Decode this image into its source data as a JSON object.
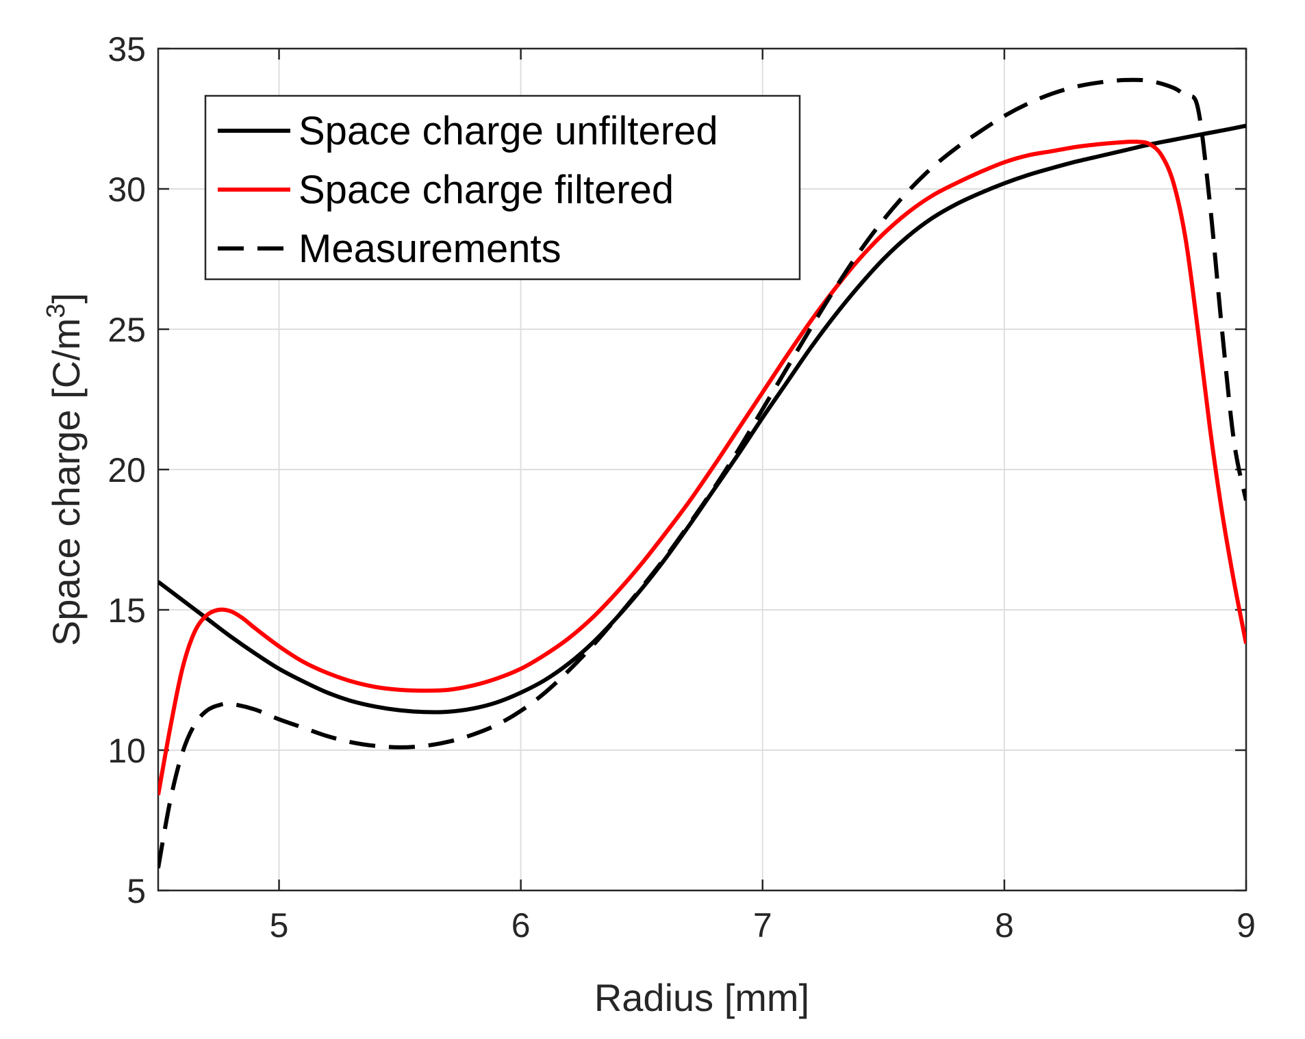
{
  "chart_data": {
    "type": "line",
    "title": "",
    "xlabel": "Radius [mm]",
    "ylabel": "Space charge [C/m",
    "ylabel_superscript": "3",
    "ylabel_suffix": "]",
    "xlim": [
      4.5,
      9
    ],
    "ylim": [
      5,
      35
    ],
    "xticks": [
      5,
      6,
      7,
      8,
      9
    ],
    "yticks": [
      5,
      10,
      15,
      20,
      25,
      30,
      35
    ],
    "xtick_labels": [
      "5",
      "6",
      "7",
      "8",
      "9"
    ],
    "ytick_labels": [
      "5",
      "10",
      "15",
      "20",
      "25",
      "30",
      "35"
    ],
    "grid": true,
    "legend_position": "top-left",
    "series": [
      {
        "name": "Space charge unfiltered",
        "color": "#000000",
        "style": "solid",
        "x": [
          4.5,
          4.6,
          4.7,
          4.8,
          4.9,
          5.0,
          5.1,
          5.2,
          5.3,
          5.4,
          5.5,
          5.6,
          5.7,
          5.8,
          5.9,
          6.0,
          6.1,
          6.2,
          6.3,
          6.4,
          6.5,
          6.6,
          6.7,
          6.8,
          6.9,
          7.0,
          7.1,
          7.2,
          7.3,
          7.4,
          7.5,
          7.6,
          7.7,
          7.8,
          7.9,
          8.0,
          8.1,
          8.2,
          8.3,
          8.4,
          8.5,
          8.6,
          8.7,
          8.8,
          8.9,
          9.0
        ],
        "values": [
          16.0,
          15.35,
          14.7,
          14.05,
          13.45,
          12.9,
          12.45,
          12.05,
          11.75,
          11.55,
          11.42,
          11.36,
          11.37,
          11.48,
          11.7,
          12.05,
          12.5,
          13.1,
          13.85,
          14.75,
          15.75,
          16.85,
          18.05,
          19.3,
          20.55,
          21.85,
          23.1,
          24.35,
          25.5,
          26.55,
          27.5,
          28.3,
          28.95,
          29.45,
          29.85,
          30.2,
          30.5,
          30.75,
          30.98,
          31.18,
          31.38,
          31.58,
          31.75,
          31.92,
          32.08,
          32.25
        ]
      },
      {
        "name": "Space charge filtered",
        "color": "#ff0000",
        "style": "solid",
        "x": [
          4.5,
          4.55,
          4.6,
          4.65,
          4.7,
          4.75,
          4.8,
          4.85,
          4.9,
          5.0,
          5.1,
          5.2,
          5.3,
          5.4,
          5.5,
          5.6,
          5.7,
          5.8,
          5.9,
          6.0,
          6.1,
          6.2,
          6.3,
          6.4,
          6.5,
          6.6,
          6.7,
          6.8,
          6.9,
          7.0,
          7.1,
          7.2,
          7.3,
          7.4,
          7.5,
          7.6,
          7.7,
          7.8,
          7.9,
          8.0,
          8.1,
          8.2,
          8.3,
          8.4,
          8.5,
          8.55,
          8.6,
          8.65,
          8.7,
          8.75,
          8.8,
          8.85,
          8.9,
          8.95,
          9.0
        ],
        "values": [
          8.4,
          10.8,
          12.9,
          14.2,
          14.8,
          15.0,
          14.95,
          14.7,
          14.35,
          13.7,
          13.15,
          12.75,
          12.45,
          12.25,
          12.15,
          12.12,
          12.15,
          12.3,
          12.55,
          12.9,
          13.4,
          14.0,
          14.75,
          15.65,
          16.65,
          17.75,
          18.9,
          20.15,
          21.45,
          22.75,
          24.05,
          25.3,
          26.45,
          27.5,
          28.4,
          29.15,
          29.75,
          30.2,
          30.6,
          30.95,
          31.2,
          31.35,
          31.5,
          31.6,
          31.67,
          31.68,
          31.6,
          31.2,
          30.2,
          28.2,
          25.0,
          21.5,
          18.5,
          16.0,
          13.8
        ]
      },
      {
        "name": "Measurements",
        "color": "#000000",
        "style": "dashed",
        "x": [
          4.5,
          4.55,
          4.6,
          4.65,
          4.7,
          4.75,
          4.8,
          4.9,
          5.0,
          5.1,
          5.2,
          5.3,
          5.4,
          5.5,
          5.6,
          5.7,
          5.8,
          5.9,
          6.0,
          6.1,
          6.2,
          6.3,
          6.4,
          6.5,
          6.6,
          6.7,
          6.8,
          6.9,
          7.0,
          7.1,
          7.2,
          7.3,
          7.4,
          7.5,
          7.6,
          7.7,
          7.8,
          7.9,
          8.0,
          8.1,
          8.2,
          8.3,
          8.4,
          8.5,
          8.6,
          8.7,
          8.75,
          8.8,
          8.85,
          8.9,
          8.95,
          9.0
        ],
        "values": [
          5.8,
          8.2,
          9.9,
          10.9,
          11.4,
          11.6,
          11.65,
          11.45,
          11.1,
          10.8,
          10.5,
          10.28,
          10.15,
          10.1,
          10.15,
          10.3,
          10.55,
          10.9,
          11.4,
          12.05,
          12.85,
          13.75,
          14.75,
          15.8,
          16.9,
          18.1,
          19.35,
          20.7,
          22.15,
          23.6,
          25.05,
          26.45,
          27.75,
          28.9,
          29.9,
          30.75,
          31.45,
          32.05,
          32.6,
          33.05,
          33.4,
          33.65,
          33.8,
          33.88,
          33.85,
          33.6,
          33.3,
          32.9,
          29.5,
          25.0,
          21.0,
          18.9
        ]
      }
    ]
  }
}
